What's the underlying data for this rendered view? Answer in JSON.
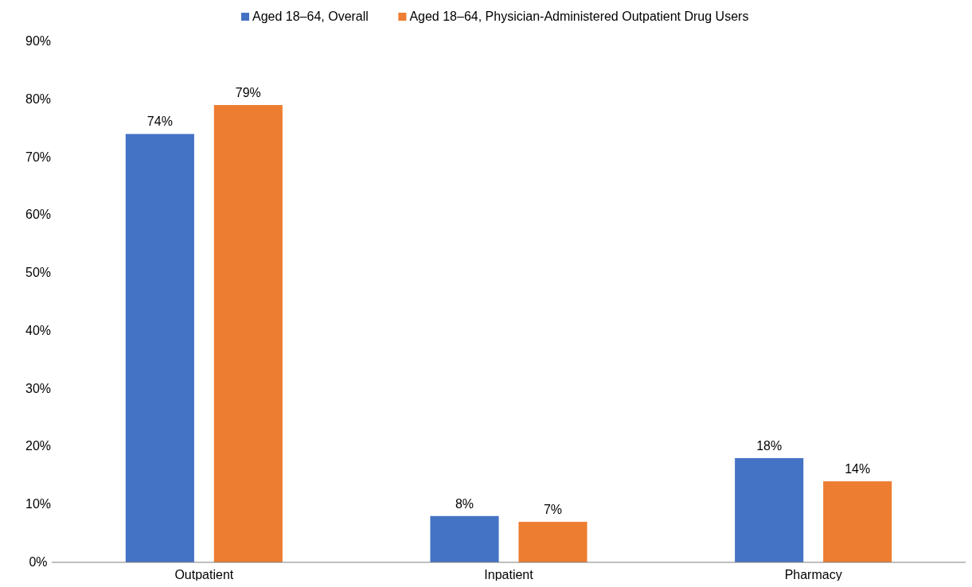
{
  "chart_data": {
    "type": "bar",
    "categories": [
      "Outpatient",
      "Inpatient",
      "Pharmacy"
    ],
    "series": [
      {
        "name": "Aged 18–64, Overall",
        "color": "#4472c4",
        "values": [
          74,
          8,
          18
        ],
        "value_labels": [
          "74%",
          "8%",
          "18%"
        ]
      },
      {
        "name": "Aged 18–64, Physician-Administered Outpatient Drug Users",
        "color": "#ed7d31",
        "values": [
          79,
          7,
          14
        ],
        "value_labels": [
          "79%",
          "7%",
          "14%"
        ]
      }
    ],
    "ylim": [
      0,
      90
    ],
    "yticks": [
      {
        "value": 0,
        "label": "0%"
      },
      {
        "value": 10,
        "label": "10%"
      },
      {
        "value": 20,
        "label": "20%"
      },
      {
        "value": 30,
        "label": "30%"
      },
      {
        "value": 40,
        "label": "40%"
      },
      {
        "value": 50,
        "label": "50%"
      },
      {
        "value": 60,
        "label": "60%"
      },
      {
        "value": 70,
        "label": "70%"
      },
      {
        "value": 80,
        "label": "80%"
      },
      {
        "value": 90,
        "label": "90%"
      }
    ],
    "grid": false,
    "legend": "top"
  }
}
